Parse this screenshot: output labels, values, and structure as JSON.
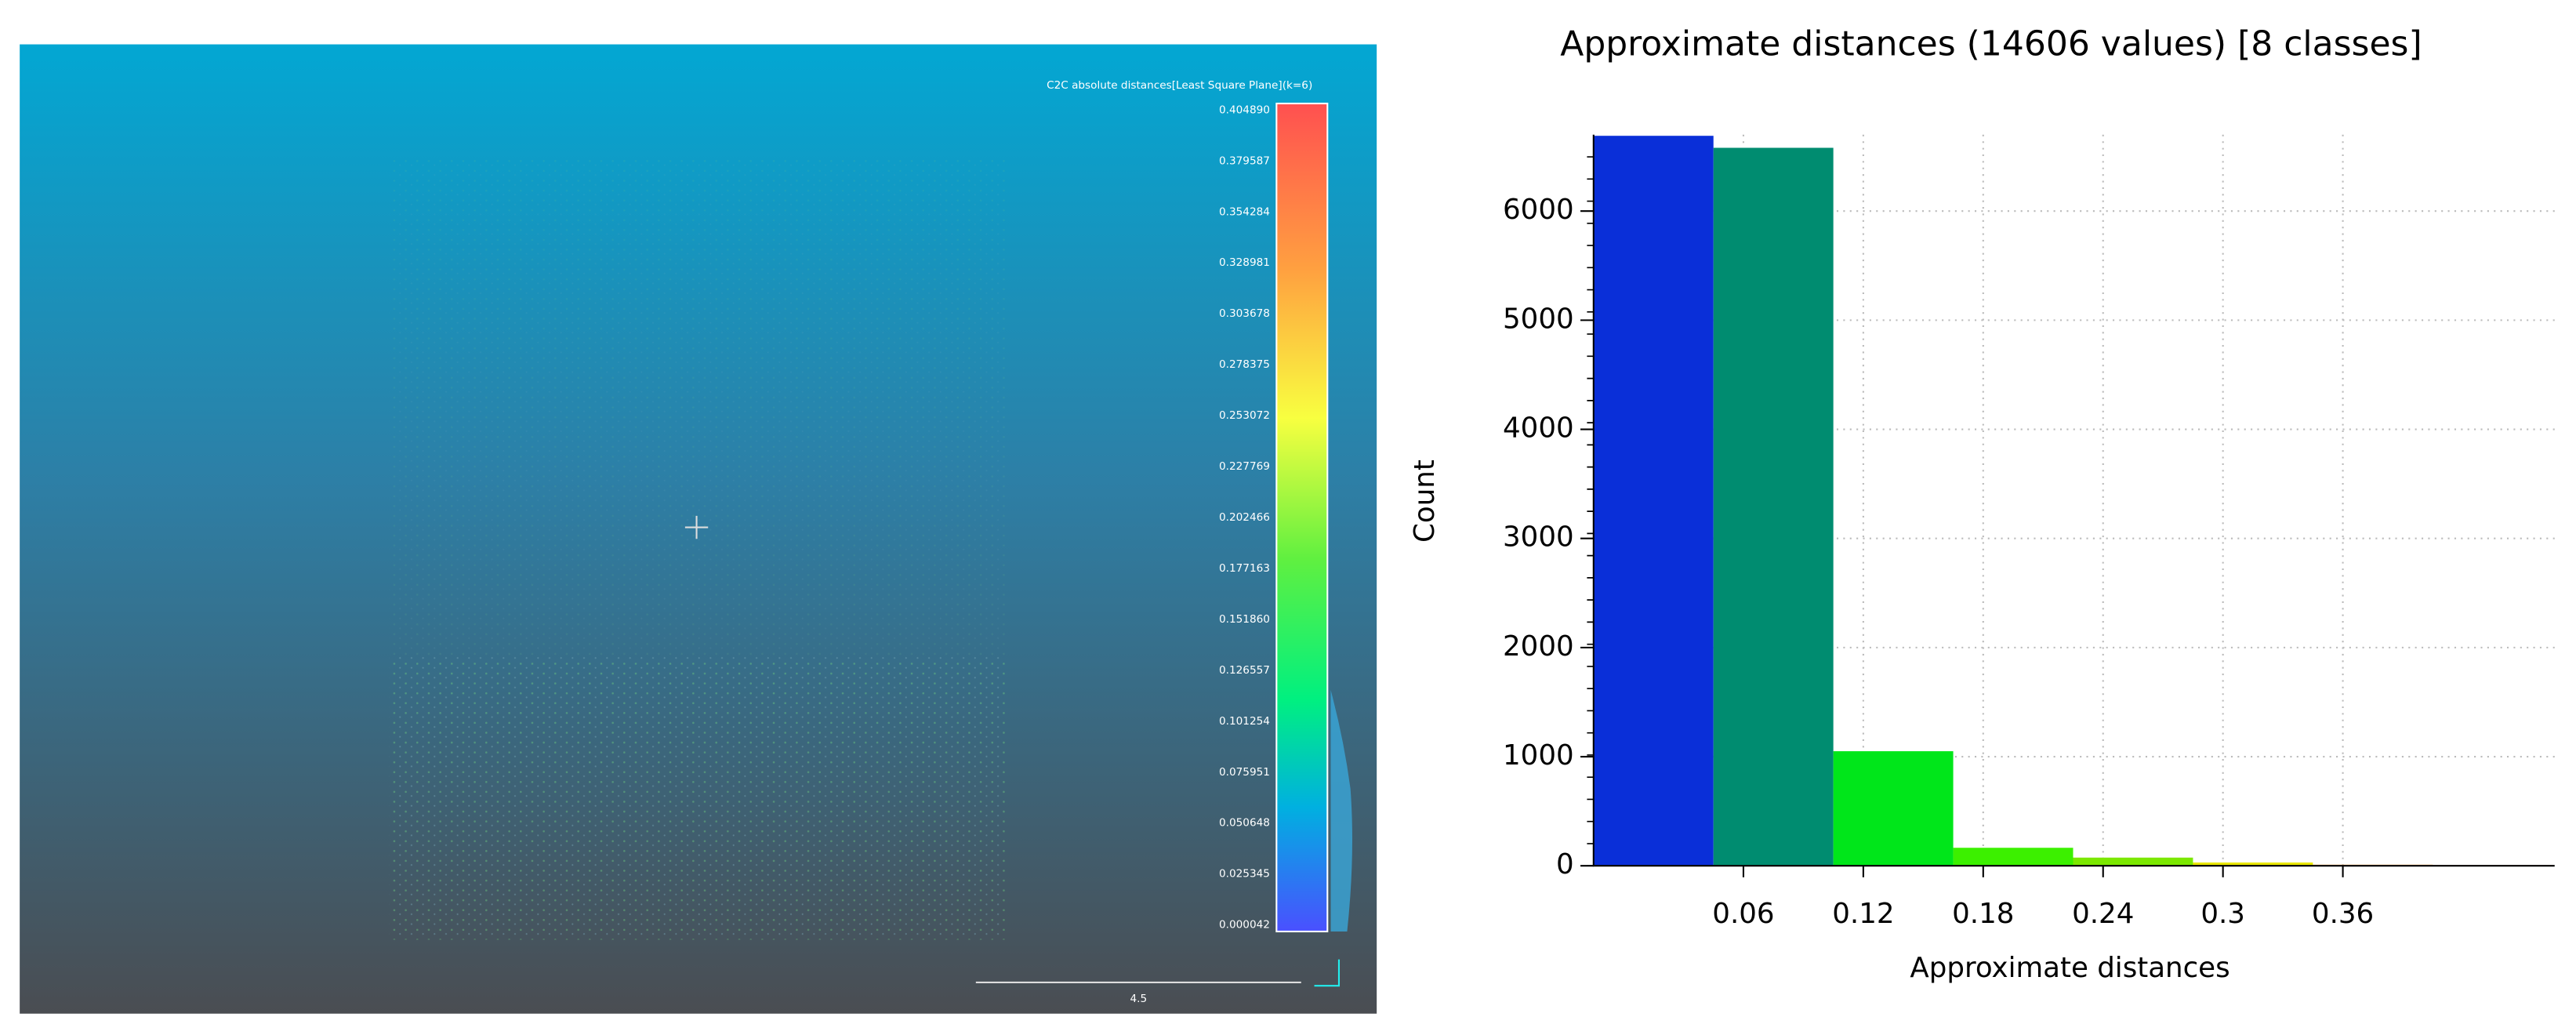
{
  "viewer": {
    "scale_title": "C2C absolute distances[Least Square Plane](k=6)",
    "scale_labels": [
      "0.404890",
      "0.379587",
      "0.354284",
      "0.328981",
      "0.303678",
      "0.278375",
      "0.253072",
      "0.227769",
      "0.202466",
      "0.177163",
      "0.151860",
      "0.126557",
      "0.101254",
      "0.075951",
      "0.050648",
      "0.025345",
      "0.000042"
    ],
    "scale_bar_label": "4.5"
  },
  "chart_data": {
    "type": "histogram",
    "title": "Approximate distances (14606 values) [8 classes]",
    "x_label": "Approximate distances",
    "y_label": "Count",
    "bins": [
      -0.015,
      0.045,
      0.105,
      0.165,
      0.225,
      0.285,
      0.345,
      0.405,
      0.465
    ],
    "values": [
      6690,
      6580,
      1050,
      165,
      75,
      30,
      10,
      6
    ],
    "colors": [
      "#0a2fd8",
      "#008c70",
      "#00e61a",
      "#3cf000",
      "#7ce800",
      "#e8e600",
      "#ffa030",
      "#ff6a4a"
    ],
    "xlim": [
      -0.015,
      0.466
    ],
    "ylim": [
      0,
      6700
    ],
    "xticks": [
      0.06,
      0.12,
      0.18,
      0.24,
      0.3,
      0.36
    ],
    "yticks": [
      0,
      1000,
      2000,
      3000,
      4000,
      5000,
      6000
    ],
    "grid": true
  }
}
